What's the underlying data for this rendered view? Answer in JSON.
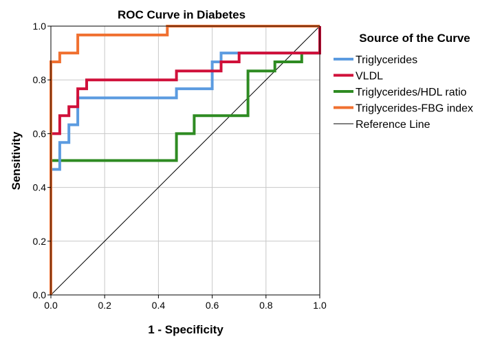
{
  "chart_data": {
    "type": "line",
    "title": "ROC Curve in Diabetes",
    "xlabel": "1 - Specificity",
    "ylabel": "Sensitivity",
    "xlim": [
      0,
      1
    ],
    "ylim": [
      0,
      1
    ],
    "x_ticks": [
      "0.0",
      "0.2",
      "0.4",
      "0.6",
      "0.8",
      "1.0"
    ],
    "y_ticks": [
      "0.0",
      "0.2",
      "0.4",
      "0.6",
      "0.8",
      "1.0"
    ],
    "grid": true,
    "legend": {
      "title": "Source of the Curve",
      "placement": "right"
    },
    "series": [
      {
        "name": "Triglycerides",
        "color": "#5B9BE0",
        "points": [
          [
            0,
            0
          ],
          [
            0,
            0.467
          ],
          [
            0.033,
            0.467
          ],
          [
            0.033,
            0.567
          ],
          [
            0.067,
            0.567
          ],
          [
            0.067,
            0.633
          ],
          [
            0.1,
            0.633
          ],
          [
            0.1,
            0.733
          ],
          [
            0.467,
            0.733
          ],
          [
            0.467,
            0.767
          ],
          [
            0.6,
            0.767
          ],
          [
            0.6,
            0.867
          ],
          [
            0.633,
            0.867
          ],
          [
            0.633,
            0.9
          ],
          [
            1,
            0.9
          ],
          [
            1,
            1
          ]
        ]
      },
      {
        "name": "VLDL",
        "color": "#D0103A",
        "points": [
          [
            0,
            0
          ],
          [
            0,
            0.6
          ],
          [
            0.033,
            0.6
          ],
          [
            0.033,
            0.667
          ],
          [
            0.067,
            0.667
          ],
          [
            0.067,
            0.7
          ],
          [
            0.1,
            0.7
          ],
          [
            0.1,
            0.767
          ],
          [
            0.133,
            0.767
          ],
          [
            0.133,
            0.8
          ],
          [
            0.467,
            0.8
          ],
          [
            0.467,
            0.833
          ],
          [
            0.633,
            0.833
          ],
          [
            0.633,
            0.867
          ],
          [
            0.7,
            0.867
          ],
          [
            0.7,
            0.9
          ],
          [
            1,
            0.9
          ],
          [
            1,
            1
          ]
        ]
      },
      {
        "name": "Triglycerides/HDL ratio",
        "color": "#2E8B22",
        "points": [
          [
            0,
            0
          ],
          [
            0,
            0.5
          ],
          [
            0.467,
            0.5
          ],
          [
            0.467,
            0.6
          ],
          [
            0.533,
            0.6
          ],
          [
            0.533,
            0.667
          ],
          [
            0.733,
            0.667
          ],
          [
            0.733,
            0.833
          ],
          [
            0.833,
            0.833
          ],
          [
            0.833,
            0.867
          ],
          [
            0.933,
            0.867
          ],
          [
            0.933,
            0.9
          ],
          [
            1,
            0.9
          ],
          [
            1,
            1
          ]
        ]
      },
      {
        "name": "Triglycerides-FBG index",
        "color": "#F07030",
        "points": [
          [
            0,
            0
          ],
          [
            0,
            0.867
          ],
          [
            0.033,
            0.867
          ],
          [
            0.033,
            0.9
          ],
          [
            0.1,
            0.9
          ],
          [
            0.1,
            0.967
          ],
          [
            0.433,
            0.967
          ],
          [
            0.433,
            1
          ],
          [
            1,
            1
          ]
        ]
      },
      {
        "name": "Reference Line",
        "color": "#000000",
        "points": [
          [
            0,
            0
          ],
          [
            1,
            1
          ]
        ]
      }
    ]
  }
}
